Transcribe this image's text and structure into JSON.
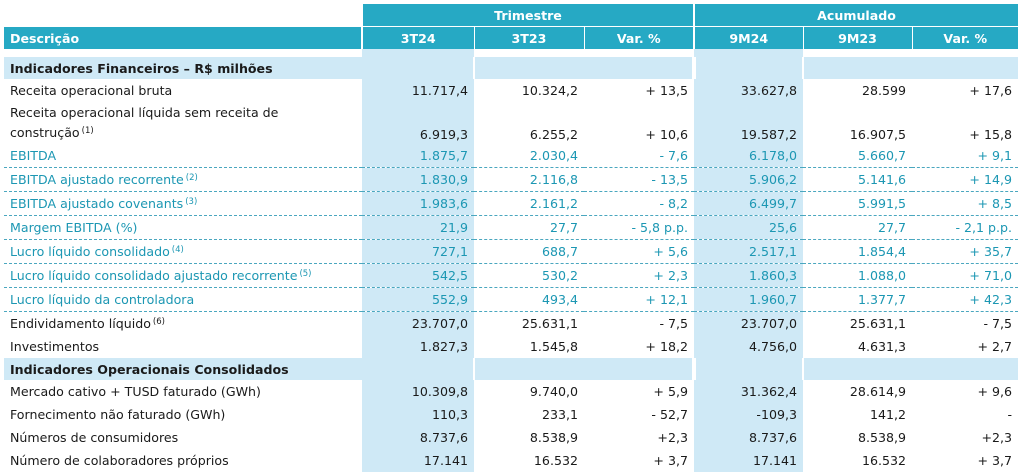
{
  "header": {
    "trimestre_label": "Trimestre",
    "acumulado_label": "Acumulado",
    "descricao_label": "Descrição",
    "columns": [
      "3T24",
      "3T23",
      "Var. %",
      "9M24",
      "9M23",
      "Var. %"
    ]
  },
  "sections": [
    {
      "title": "Indicadores Financeiros – R$ milhões",
      "rows": [
        {
          "label": "Receita operacional bruta",
          "note": "",
          "values": [
            "11.717,4",
            "10.324,2",
            "+ 13,5",
            "33.627,8",
            "28.599",
            "+ 17,6"
          ]
        },
        {
          "label": "Receita operacional líquida sem receita de construção",
          "note": "(1)",
          "values": [
            "6.919,3",
            "6.255,2",
            "+ 10,6",
            "19.587,2",
            "16.907,5",
            "+ 15,8"
          ]
        },
        {
          "label": "EBITDA",
          "note": "",
          "values": [
            "1.875,7",
            "2.030,4",
            "- 7,6",
            "6.178,0",
            "5.660,7",
            "+ 9,1"
          ]
        },
        {
          "label": "EBITDA ajustado recorrente",
          "note": "(2)",
          "values": [
            "1.830,9",
            "2.116,8",
            "- 13,5",
            "5.906,2",
            "5.141,6",
            "+ 14,9"
          ]
        },
        {
          "label": "EBITDA ajustado covenants",
          "note": "(3)",
          "values": [
            "1.983,6",
            "2.161,2",
            "- 8,2",
            "6.499,7",
            "5.991,5",
            "+ 8,5"
          ]
        },
        {
          "label": "Margem EBITDA (%)",
          "note": "",
          "values": [
            "21,9",
            "27,7",
            "- 5,8 p.p.",
            "25,6",
            "27,7",
            "- 2,1 p.p."
          ]
        },
        {
          "label": "Lucro líquido consolidado",
          "note": "(4)",
          "values": [
            "727,1",
            "688,7",
            "+ 5,6",
            "2.517,1",
            "1.854,4",
            "+ 35,7"
          ]
        },
        {
          "label": "Lucro líquido consolidado ajustado recorrente",
          "note": "(5)",
          "values": [
            "542,5",
            "530,2",
            "+ 2,3",
            "1.860,3",
            "1.088,0",
            "+ 71,0"
          ]
        },
        {
          "label": "Lucro líquido da controladora",
          "note": "",
          "values": [
            "552,9",
            "493,4",
            "+ 12,1",
            "1.960,7",
            "1.377,7",
            "+ 42,3"
          ]
        },
        {
          "label": "Endividamento líquido",
          "note": "(6)",
          "values": [
            "23.707,0",
            "25.631,1",
            "- 7,5",
            "23.707,0",
            "25.631,1",
            "- 7,5"
          ]
        },
        {
          "label": "Investimentos",
          "note": "",
          "values": [
            "1.827,3",
            "1.545,8",
            "+ 18,2",
            "4.756,0",
            "4.631,3",
            "+ 2,7"
          ]
        }
      ]
    },
    {
      "title": "Indicadores Operacionais Consolidados",
      "rows": [
        {
          "label": "Mercado cativo + TUSD faturado (GWh)",
          "note": "",
          "values": [
            "10.309,8",
            "9.740,0",
            "+ 5,9",
            "31.362,4",
            "28.614,9",
            "+ 9,6"
          ]
        },
        {
          "label": "Fornecimento não faturado (GWh)",
          "note": "",
          "values": [
            "110,3",
            "233,1",
            "- 52,7",
            "-109,3",
            "141,2",
            "-"
          ]
        },
        {
          "label": "Números de consumidores",
          "note": "",
          "values": [
            "8.737,6",
            "8.538,9",
            "+2,3",
            "8.737,6",
            "8.538,9",
            "+2,3"
          ]
        },
        {
          "label": "Número de colaboradores próprios",
          "note": "",
          "values": [
            "17.141",
            "16.532",
            "+ 3,7",
            "17.141",
            "16.532",
            "+ 3,7"
          ]
        }
      ]
    }
  ],
  "colors": {
    "accent": "#26a9c4",
    "highlight": "#cfe9f6",
    "teal_text": "#1c97b3"
  }
}
